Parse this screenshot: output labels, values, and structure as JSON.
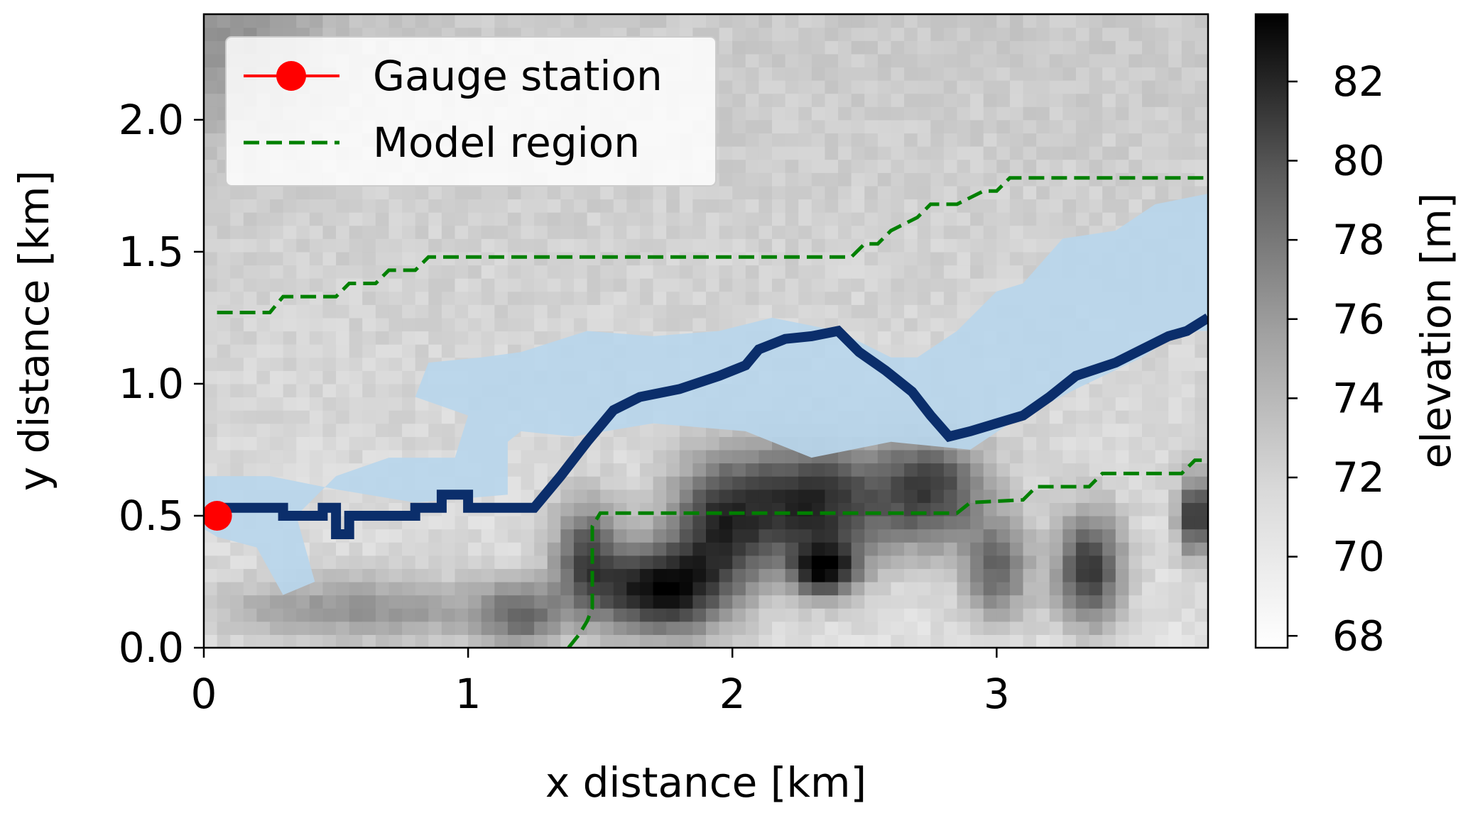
{
  "chart_data": {
    "type": "heatmap",
    "title": "",
    "xlabel": "x distance [km]",
    "ylabel": "y distance [km]",
    "xlim": [
      0,
      3.8
    ],
    "ylim": [
      0,
      2.4
    ],
    "xticks": [
      0,
      1,
      2,
      3
    ],
    "xtick_labels": [
      "0",
      "1",
      "2",
      "3"
    ],
    "yticks": [
      0.0,
      0.5,
      1.0,
      1.5,
      2.0
    ],
    "ytick_labels": [
      "0.0",
      "0.5",
      "1.0",
      "1.5",
      "2.0"
    ],
    "grid": false,
    "legend_position": "upper-left",
    "legend": [
      {
        "label": "Gauge station",
        "style": "marker-line",
        "color": "#ff0000"
      },
      {
        "label": "Model region",
        "style": "dashed",
        "color": "#008000"
      }
    ],
    "colorbar": {
      "label": "elevation [m]",
      "min": 67.7,
      "max": 83.7,
      "ticks": [
        68,
        70,
        72,
        74,
        76,
        78,
        80,
        82
      ],
      "tick_labels": [
        "68",
        "70",
        "72",
        "74",
        "76",
        "78",
        "80",
        "82"
      ],
      "colormap": "Greys"
    },
    "elevation_features": [
      {
        "x": 1.72,
        "y": 0.22,
        "rx": 0.22,
        "ry": 0.16,
        "z": 83
      },
      {
        "x": 1.45,
        "y": 0.35,
        "rx": 0.12,
        "ry": 0.2,
        "z": 78
      },
      {
        "x": 1.95,
        "y": 0.45,
        "rx": 0.18,
        "ry": 0.25,
        "z": 79
      },
      {
        "x": 2.3,
        "y": 0.55,
        "rx": 0.28,
        "ry": 0.22,
        "z": 81
      },
      {
        "x": 2.35,
        "y": 0.3,
        "rx": 0.12,
        "ry": 0.1,
        "z": 82
      },
      {
        "x": 2.75,
        "y": 0.6,
        "rx": 0.2,
        "ry": 0.2,
        "z": 79
      },
      {
        "x": 3.0,
        "y": 0.3,
        "rx": 0.12,
        "ry": 0.18,
        "z": 77
      },
      {
        "x": 3.35,
        "y": 0.3,
        "rx": 0.12,
        "ry": 0.2,
        "z": 80
      },
      {
        "x": 3.75,
        "y": 0.5,
        "rx": 0.06,
        "ry": 0.14,
        "z": 81
      },
      {
        "x": 0.6,
        "y": 0.15,
        "rx": 0.55,
        "ry": 0.12,
        "z": 74
      },
      {
        "x": 1.2,
        "y": 0.12,
        "rx": 0.15,
        "ry": 0.12,
        "z": 76
      },
      {
        "x": 0.1,
        "y": 2.3,
        "rx": 0.35,
        "ry": 0.35,
        "z": 73
      }
    ],
    "flooded_area": {
      "color": "#b9d6ec",
      "points": [
        [
          0.0,
          0.65
        ],
        [
          0.25,
          0.65
        ],
        [
          0.5,
          0.6
        ],
        [
          0.8,
          0.55
        ],
        [
          1.15,
          0.58
        ],
        [
          1.15,
          0.78
        ],
        [
          1.2,
          0.82
        ],
        [
          1.4,
          0.8
        ],
        [
          1.7,
          0.85
        ],
        [
          2.05,
          0.82
        ],
        [
          2.3,
          0.72
        ],
        [
          2.6,
          0.78
        ],
        [
          2.9,
          0.75
        ],
        [
          3.05,
          0.85
        ],
        [
          3.3,
          0.98
        ],
        [
          3.55,
          1.1
        ],
        [
          3.7,
          1.2
        ],
        [
          3.8,
          1.2
        ],
        [
          3.8,
          1.72
        ],
        [
          3.6,
          1.68
        ],
        [
          3.45,
          1.58
        ],
        [
          3.25,
          1.55
        ],
        [
          3.1,
          1.38
        ],
        [
          3.0,
          1.35
        ],
        [
          2.85,
          1.2
        ],
        [
          2.7,
          1.1
        ],
        [
          2.6,
          1.1
        ],
        [
          2.4,
          1.2
        ],
        [
          2.15,
          1.25
        ],
        [
          1.95,
          1.2
        ],
        [
          1.7,
          1.18
        ],
        [
          1.45,
          1.2
        ],
        [
          1.2,
          1.12
        ],
        [
          1.05,
          1.1
        ],
        [
          0.85,
          1.08
        ],
        [
          0.8,
          0.95
        ],
        [
          1.0,
          0.88
        ],
        [
          0.95,
          0.72
        ],
        [
          0.7,
          0.72
        ],
        [
          0.5,
          0.65
        ],
        [
          0.35,
          0.5
        ],
        [
          0.42,
          0.25
        ],
        [
          0.3,
          0.2
        ],
        [
          0.2,
          0.38
        ],
        [
          0.05,
          0.42
        ],
        [
          0.0,
          0.45
        ]
      ]
    },
    "flow_path": {
      "color": "#0b2e6b",
      "points": [
        [
          0.05,
          0.48
        ],
        [
          0.05,
          0.53
        ],
        [
          0.3,
          0.53
        ],
        [
          0.3,
          0.5
        ],
        [
          0.45,
          0.5
        ],
        [
          0.45,
          0.53
        ],
        [
          0.5,
          0.53
        ],
        [
          0.5,
          0.43
        ],
        [
          0.55,
          0.43
        ],
        [
          0.55,
          0.5
        ],
        [
          0.8,
          0.5
        ],
        [
          0.8,
          0.53
        ],
        [
          0.9,
          0.53
        ],
        [
          0.9,
          0.58
        ],
        [
          1.0,
          0.58
        ],
        [
          1.0,
          0.53
        ],
        [
          1.25,
          0.53
        ],
        [
          1.35,
          0.65
        ],
        [
          1.45,
          0.78
        ],
        [
          1.55,
          0.9
        ],
        [
          1.65,
          0.95
        ],
        [
          1.8,
          0.98
        ],
        [
          1.95,
          1.03
        ],
        [
          2.05,
          1.07
        ],
        [
          2.1,
          1.13
        ],
        [
          2.2,
          1.17
        ],
        [
          2.3,
          1.18
        ],
        [
          2.4,
          1.2
        ],
        [
          2.48,
          1.12
        ],
        [
          2.58,
          1.05
        ],
        [
          2.68,
          0.97
        ],
        [
          2.75,
          0.88
        ],
        [
          2.82,
          0.8
        ],
        [
          2.9,
          0.82
        ],
        [
          3.0,
          0.85
        ],
        [
          3.1,
          0.88
        ],
        [
          3.2,
          0.95
        ],
        [
          3.3,
          1.03
        ],
        [
          3.45,
          1.08
        ],
        [
          3.55,
          1.13
        ],
        [
          3.65,
          1.18
        ],
        [
          3.72,
          1.2
        ],
        [
          3.8,
          1.25
        ]
      ]
    },
    "model_region": {
      "color": "#008000",
      "upper": [
        [
          0.05,
          1.27
        ],
        [
          0.25,
          1.27
        ],
        [
          0.3,
          1.33
        ],
        [
          0.5,
          1.33
        ],
        [
          0.55,
          1.38
        ],
        [
          0.65,
          1.38
        ],
        [
          0.7,
          1.43
        ],
        [
          0.8,
          1.43
        ],
        [
          0.85,
          1.48
        ],
        [
          2.45,
          1.48
        ],
        [
          2.5,
          1.53
        ],
        [
          2.55,
          1.53
        ],
        [
          2.6,
          1.58
        ],
        [
          2.7,
          1.63
        ],
        [
          2.75,
          1.68
        ],
        [
          2.85,
          1.68
        ],
        [
          2.95,
          1.73
        ],
        [
          3.0,
          1.73
        ],
        [
          3.05,
          1.78
        ],
        [
          3.8,
          1.78
        ]
      ],
      "lower": [
        [
          1.38,
          0.0
        ],
        [
          1.42,
          0.05
        ],
        [
          1.45,
          0.1
        ],
        [
          1.47,
          0.15
        ],
        [
          1.47,
          0.46
        ],
        [
          1.5,
          0.51
        ],
        [
          2.85,
          0.51
        ],
        [
          2.9,
          0.55
        ],
        [
          3.1,
          0.56
        ],
        [
          3.15,
          0.61
        ],
        [
          3.35,
          0.61
        ],
        [
          3.4,
          0.66
        ],
        [
          3.7,
          0.66
        ],
        [
          3.75,
          0.71
        ],
        [
          3.8,
          0.71
        ]
      ]
    },
    "gauge_station": {
      "x": 0.05,
      "y": 0.5,
      "color": "#ff0000"
    }
  }
}
